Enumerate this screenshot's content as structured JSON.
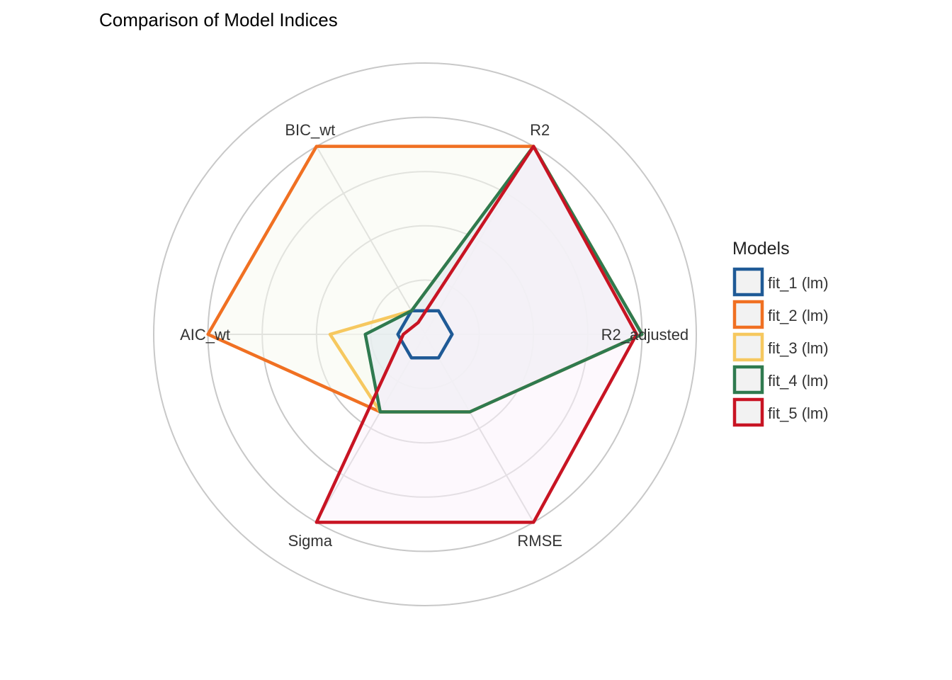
{
  "chart_data": {
    "type": "radar",
    "title": "Comparison of Model Indices",
    "axes": [
      "R2",
      "R2_adjusted",
      "RMSE",
      "Sigma",
      "AIC_wt",
      "BIC_wt"
    ],
    "rlim": [
      0,
      1
    ],
    "grid_levels": [
      0.2,
      0.4,
      0.6,
      0.8,
      1.0
    ],
    "grid": true,
    "legend": {
      "title": "Models",
      "position": "right"
    },
    "series": [
      {
        "name": "fit_1 (lm)",
        "color": "#1F5A96",
        "values": [
          0.1,
          0.1,
          0.1,
          0.1,
          0.1,
          0.1
        ]
      },
      {
        "name": "fit_2 (lm)",
        "color": "#F07022",
        "values": [
          0.8,
          0.8,
          0.33,
          0.33,
          0.8,
          0.8
        ]
      },
      {
        "name": "fit_3 (lm)",
        "color": "#F6C85F",
        "values": [
          0.8,
          0.8,
          0.33,
          0.33,
          0.35,
          0.1
        ]
      },
      {
        "name": "fit_4 (lm)",
        "color": "#2F7A4F",
        "values": [
          0.8,
          0.8,
          0.33,
          0.33,
          0.22,
          0.1
        ]
      },
      {
        "name": "fit_5 (lm)",
        "color": "#C81423",
        "values": [
          0.8,
          0.78,
          0.8,
          0.8,
          0.08,
          0.05
        ]
      }
    ]
  }
}
